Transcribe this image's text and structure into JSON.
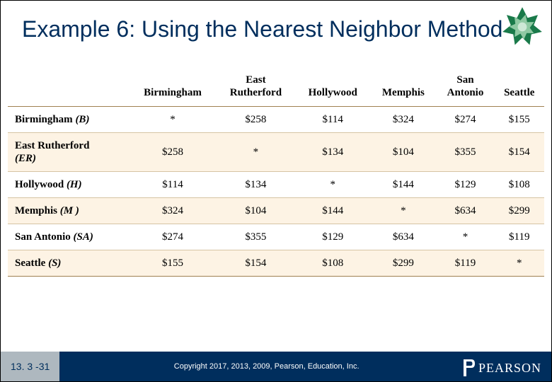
{
  "title": "Example 6: Using the Nearest Neighbor Method",
  "star": {
    "outer_color": "#1a7a4a",
    "inner_color": "#8fc9a3",
    "core_color": "#cde8d6"
  },
  "table": {
    "type": "table",
    "background_color": "#ffffff",
    "alt_row_color": "#fdf3e4",
    "border_color": "#a08050",
    "row_border_color": "#d6c4a4",
    "font_family": "Times New Roman",
    "header_fontsize": 15,
    "cell_fontsize": 15,
    "columns": [
      "",
      "Birmingham",
      "East Rutherford",
      "Hollywood",
      "Memphis",
      "San Antonio",
      "Seattle"
    ],
    "column_two_line": [
      false,
      false,
      true,
      false,
      false,
      true,
      false
    ],
    "row_headers": [
      {
        "label": "Birmingham",
        "sym": "(B)"
      },
      {
        "label": "East Rutherford",
        "sym": "(ER)"
      },
      {
        "label": "Hollywood",
        "sym": "(H)"
      },
      {
        "label": "Memphis",
        "sym": "(M )"
      },
      {
        "label": "San Antonio",
        "sym": "(SA)"
      },
      {
        "label": "Seattle",
        "sym": "(S)"
      }
    ],
    "rows": [
      [
        "*",
        "$258",
        "$114",
        "$324",
        "$274",
        "$155"
      ],
      [
        "$258",
        "*",
        "$134",
        "$104",
        "$355",
        "$154"
      ],
      [
        "$114",
        "$134",
        "*",
        "$144",
        "$129",
        "$108"
      ],
      [
        "$324",
        "$104",
        "$144",
        "*",
        "$634",
        "$299"
      ],
      [
        "$274",
        "$355",
        "$129",
        "$634",
        "*",
        "$119"
      ],
      [
        "$155",
        "$154",
        "$108",
        "$299",
        "$119",
        "*"
      ]
    ]
  },
  "footer": {
    "page_number": "13. 3 -31",
    "copyright": "Copyright 2017, 2013, 2009, Pearson, Education, Inc.",
    "logo_text": "PEARSON",
    "bg_color": "#002e5d",
    "pg_bg_color": "#aeb8bf"
  }
}
